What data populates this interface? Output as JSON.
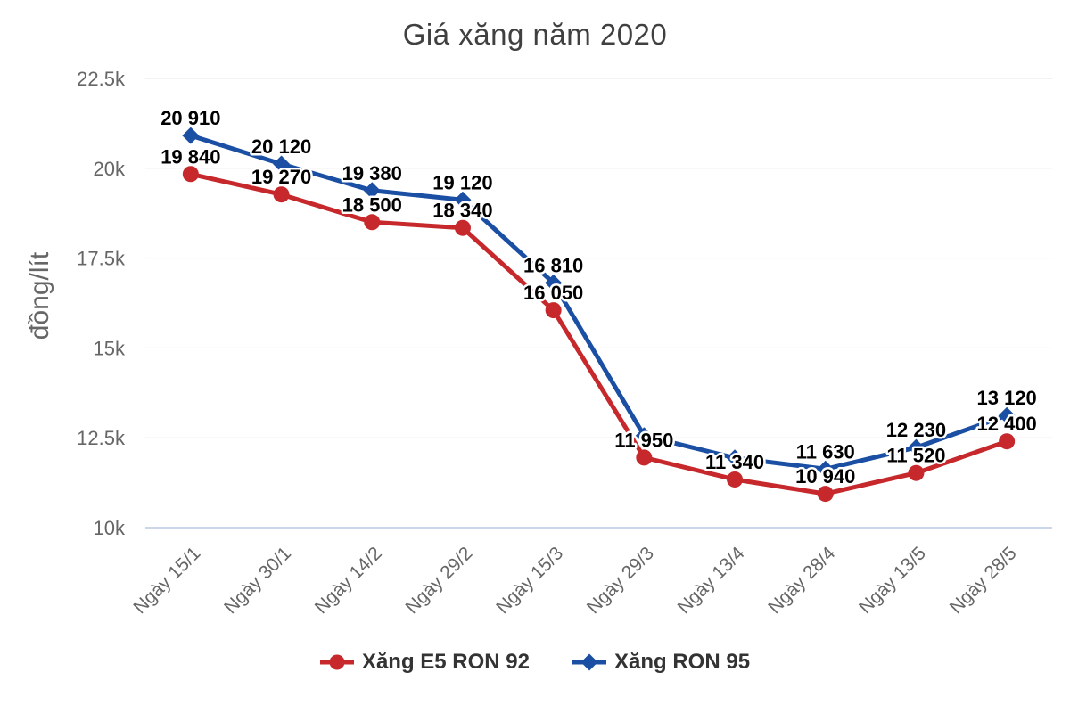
{
  "chart_data": {
    "type": "line",
    "title": "Giá xăng năm 2020",
    "ylabel": "đồng/lít",
    "categories": [
      "Ngày 15/1",
      "Ngày 30/1",
      "Ngày 14/2",
      "Ngày 29/2",
      "Ngày 15/3",
      "Ngày 29/3",
      "Ngày 13/4",
      "Ngày 28/4",
      "Ngày 13/5",
      "Ngày 28/5"
    ],
    "ylim": [
      10000,
      22500
    ],
    "yticks": [
      {
        "value": 10000,
        "label": "10k"
      },
      {
        "value": 12500,
        "label": "12.5k"
      },
      {
        "value": 15000,
        "label": "15k"
      },
      {
        "value": 17500,
        "label": "17.5k"
      },
      {
        "value": 20000,
        "label": "20k"
      },
      {
        "value": 22500,
        "label": "22.5k"
      }
    ],
    "grid": "horizontal-only",
    "legend_position": "bottom-center",
    "series": [
      {
        "name": "Xăng E5 RON 92",
        "color": "#c6282b",
        "marker": "circle",
        "values": [
          19840,
          19270,
          18500,
          18340,
          16050,
          11950,
          11340,
          10940,
          11520,
          12400
        ],
        "labels": [
          "19 840",
          "19 270",
          "18 500",
          "18 340",
          "16 050",
          "11 950",
          "11 340",
          "10 940",
          "11 520",
          "12 400"
        ]
      },
      {
        "name": "Xăng RON 95",
        "color": "#1a4fa3",
        "marker": "diamond",
        "values": [
          20910,
          20120,
          19380,
          19120,
          16810,
          12560,
          11940,
          11630,
          12230,
          13120
        ],
        "labels": [
          "20 910",
          "20 120",
          "19 380",
          "19 120",
          "16 810",
          "",
          "",
          "11 630",
          "12 230",
          "13 120"
        ]
      }
    ],
    "styles": {
      "grid_color": "#e6e6e6",
      "axis_line_color": "#ccd6eb",
      "tick_label_color": "#666666",
      "title_color": "#404040",
      "data_label_color": "#000000",
      "legend_text_color": "#333333",
      "background": "#ffffff"
    }
  }
}
